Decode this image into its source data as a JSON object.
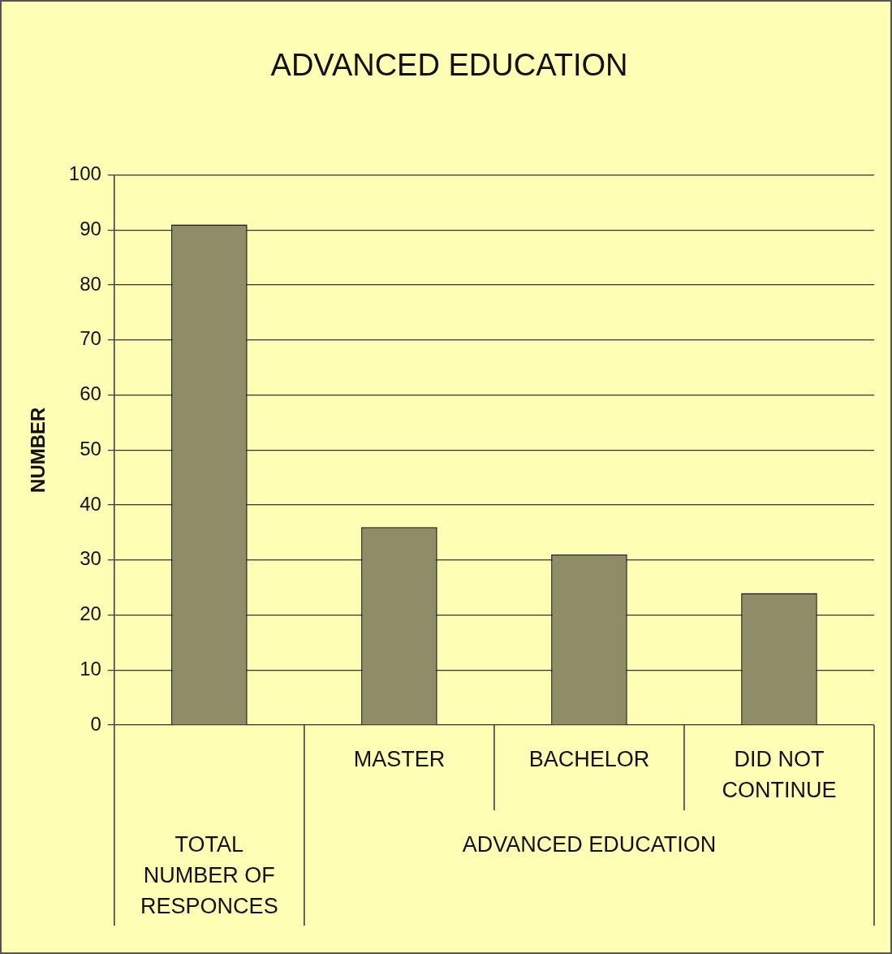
{
  "chart_data": {
    "type": "bar",
    "title": "ADVANCED EDUCATION",
    "ylabel": "NUMBER",
    "categories": [
      null,
      "MASTER",
      "BACHELOR",
      "DID NOT CONTINUE"
    ],
    "values": [
      91,
      36,
      31,
      24
    ],
    "color": "#8f8c68",
    "ylim": [
      0,
      100
    ],
    "yticks": [
      0,
      10,
      20,
      30,
      40,
      50,
      60,
      70,
      80,
      90,
      100
    ],
    "grid": "y",
    "legend": false,
    "annotations": [
      "TOTAL NUMBER OF RESPONCES",
      "ADVANCED EDUCATION"
    ]
  }
}
